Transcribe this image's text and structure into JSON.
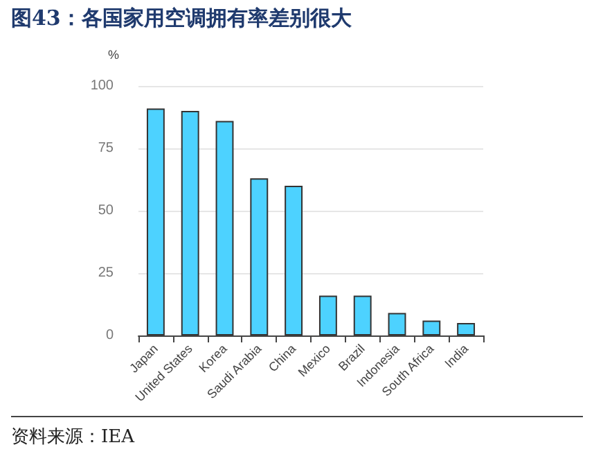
{
  "chart_data": {
    "type": "bar",
    "title": "图43：各国家用空调拥有率差别很大",
    "ylabel": "%",
    "categories": [
      "Japan",
      "United States",
      "Korea",
      "Saudi Arabia",
      "China",
      "Mexico",
      "Brazil",
      "Indonesia",
      "South Africa",
      "India"
    ],
    "values": [
      91,
      90,
      86,
      63,
      60,
      16,
      16,
      9,
      6,
      5
    ],
    "color": "#4dd2ff",
    "ylim": [
      0,
      100
    ],
    "yticks": [
      0,
      25,
      50,
      75,
      100
    ],
    "grid": "y",
    "annotations": [
      "资料来源：IEA"
    ]
  }
}
